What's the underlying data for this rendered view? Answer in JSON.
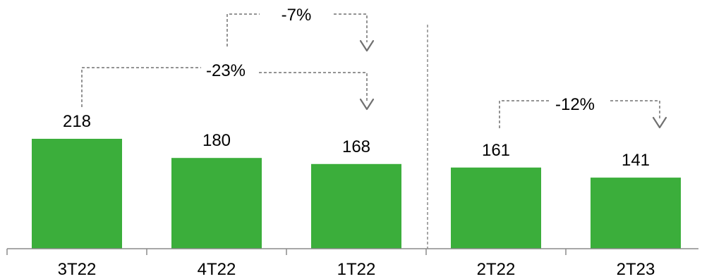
{
  "chart_data": {
    "type": "bar",
    "categories": [
      "3T22",
      "4T22",
      "1T22",
      "2T22",
      "2T23"
    ],
    "values": [
      218,
      180,
      168,
      161,
      141
    ],
    "title": "",
    "xlabel": "",
    "ylabel": "",
    "ylim": [
      0,
      218
    ],
    "bar_color": "#3BAE3B",
    "grid": false,
    "legend": "none",
    "annotations": [
      {
        "label": "-7%",
        "from": "4T22",
        "to": "1T22"
      },
      {
        "label": "-23%",
        "from": "3T22",
        "to": "1T22"
      },
      {
        "label": "-12%",
        "from": "2T22",
        "to": "2T23"
      }
    ]
  }
}
